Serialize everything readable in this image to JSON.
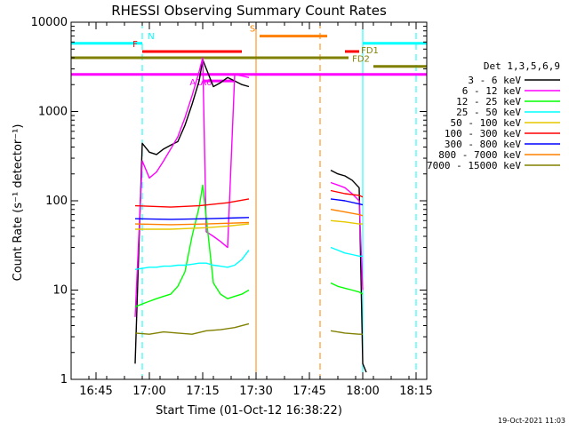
{
  "chart_data": {
    "type": "line",
    "title": "RHESSI Observing Summary Count Rates",
    "xlabel": "Start Time (01-Oct-12 16:38:22)",
    "ylabel": "Count Rate (s⁻¹ detector⁻¹)",
    "yscale": "log",
    "ylim": [
      1,
      10000
    ],
    "xlim": [
      "16:38",
      "18:18"
    ],
    "x_ticks": [
      "16:45",
      "17:00",
      "17:15",
      "17:30",
      "17:45",
      "18:00",
      "18:15"
    ],
    "y_ticks": [
      "1",
      "10",
      "100",
      "1000",
      "10000"
    ],
    "timestamp": "19-Oct-2021 11:03",
    "legend_title": "Det 1,3,5,6,9",
    "legend_position": "right",
    "series": [
      {
        "name": "3 - 6 keV",
        "color": "#000000",
        "segments": [
          {
            "x": [
              "16:56",
              "16:58",
              "17:00",
              "17:02",
              "17:04",
              "17:06",
              "17:08",
              "17:10",
              "17:12",
              "17:14",
              "17:15",
              "17:18",
              "17:20",
              "17:22",
              "17:24",
              "17:26",
              "17:28"
            ],
            "y": [
              1.5,
              440,
              350,
              330,
              380,
              420,
              460,
              700,
              1200,
              2200,
              3800,
              1900,
              2100,
              2400,
              2200,
              2000,
              1900
            ]
          },
          {
            "x": [
              "17:51",
              "17:53",
              "17:55",
              "17:57",
              "17:59",
              "18:00",
              "18:01"
            ],
            "y": [
              220,
              200,
              190,
              170,
              140,
              1.5,
              1.2
            ]
          }
        ]
      },
      {
        "name": "6 - 12 keV",
        "color": "#ff00ff",
        "segments": [
          {
            "x": [
              "16:56",
              "16:58",
              "17:00",
              "17:02",
              "17:04",
              "17:06",
              "17:08",
              "17:10",
              "17:12",
              "17:14",
              "17:15",
              "17:16",
              "17:18",
              "17:20",
              "17:22",
              "17:24",
              "17:26",
              "17:28"
            ],
            "y": [
              5,
              280,
              180,
              210,
              280,
              380,
              520,
              850,
              1500,
              2800,
              4000,
              45,
              40,
              35,
              30,
              2600,
              2500,
              2400
            ]
          },
          {
            "x": [
              "17:51",
              "17:53",
              "17:55",
              "17:57",
              "17:59",
              "18:00"
            ],
            "y": [
              160,
              150,
              140,
              120,
              100,
              10
            ]
          }
        ]
      },
      {
        "name": "12 - 25 keV",
        "color": "#00ff00",
        "segments": [
          {
            "x": [
              "16:56",
              "16:58",
              "17:00",
              "17:02",
              "17:04",
              "17:06",
              "17:08",
              "17:10",
              "17:12",
              "17:14",
              "17:15",
              "17:18",
              "17:20",
              "17:22",
              "17:24",
              "17:26",
              "17:28"
            ],
            "y": [
              6.5,
              7,
              7.5,
              8,
              8.5,
              9,
              11,
              16,
              40,
              85,
              150,
              12,
              9,
              8,
              8.5,
              9,
              10
            ]
          },
          {
            "x": [
              "17:51",
              "17:53",
              "17:55",
              "17:57",
              "17:59",
              "18:00"
            ],
            "y": [
              12,
              11,
              10.5,
              10,
              9.5,
              9
            ]
          }
        ]
      },
      {
        "name": "25 - 50 keV",
        "color": "#00ffff",
        "segments": [
          {
            "x": [
              "16:56",
              "16:58",
              "17:00",
              "17:02",
              "17:04",
              "17:06",
              "17:08",
              "17:10",
              "17:12",
              "17:14",
              "17:16",
              "17:18",
              "17:20",
              "17:22",
              "17:24",
              "17:26",
              "17:28"
            ],
            "y": [
              17,
              17.5,
              18,
              18,
              18.5,
              18.5,
              19,
              19,
              19.5,
              20,
              20,
              19,
              18.5,
              18,
              19,
              22,
              28
            ]
          },
          {
            "x": [
              "17:51",
              "17:53",
              "17:55",
              "17:57",
              "17:59",
              "18:00"
            ],
            "y": [
              30,
              28,
              26,
              25,
              24,
              24
            ]
          }
        ]
      },
      {
        "name": "50 - 100 keV",
        "color": "#e6c800",
        "segments": [
          {
            "x": [
              "16:56",
              "17:06",
              "17:16",
              "17:22",
              "17:28"
            ],
            "y": [
              48,
              48,
              50,
              52,
              55
            ]
          },
          {
            "x": [
              "17:51",
              "17:55",
              "17:59",
              "18:00"
            ],
            "y": [
              60,
              58,
              55,
              55
            ]
          }
        ]
      },
      {
        "name": "100 - 300 keV",
        "color": "#ff0000",
        "segments": [
          {
            "x": [
              "16:56",
              "17:06",
              "17:14",
              "17:22",
              "17:28"
            ],
            "y": [
              88,
              85,
              88,
              95,
              105
            ]
          },
          {
            "x": [
              "17:51",
              "17:55",
              "17:59",
              "18:00"
            ],
            "y": [
              130,
              120,
              115,
              110
            ]
          }
        ]
      },
      {
        "name": "300 - 800 keV",
        "color": "#0000ff",
        "segments": [
          {
            "x": [
              "16:56",
              "17:06",
              "17:16",
              "17:22",
              "17:28"
            ],
            "y": [
              63,
              62,
              63,
              64,
              65
            ]
          },
          {
            "x": [
              "17:51",
              "17:55",
              "17:59",
              "18:00"
            ],
            "y": [
              105,
              100,
              92,
              90
            ]
          }
        ]
      },
      {
        "name": "800 - 7000 keV",
        "color": "#ff8000",
        "segments": [
          {
            "x": [
              "16:56",
              "17:06",
              "17:16",
              "17:22",
              "17:28"
            ],
            "y": [
              55,
              54,
              55,
              56,
              57
            ]
          },
          {
            "x": [
              "17:51",
              "17:55",
              "17:59",
              "18:00"
            ],
            "y": [
              80,
              75,
              70,
              68
            ]
          }
        ]
      },
      {
        "name": "7000 - 15000 keV",
        "color": "#808000",
        "segments": [
          {
            "x": [
              "16:56",
              "17:00",
              "17:04",
              "17:08",
              "17:12",
              "17:16",
              "17:20",
              "17:24",
              "17:28"
            ],
            "y": [
              3.3,
              3.2,
              3.4,
              3.3,
              3.2,
              3.5,
              3.6,
              3.8,
              4.2
            ]
          },
          {
            "x": [
              "17:51",
              "17:55",
              "17:59",
              "18:00"
            ],
            "y": [
              3.5,
              3.3,
              3.2,
              3.2
            ]
          }
        ]
      }
    ],
    "attenuator_markers": [
      {
        "label": "A1",
        "x": "17:14",
        "color": "#ff00ff"
      },
      {
        "label": "A0",
        "x": "17:17",
        "color": "#ff00ff"
      }
    ],
    "status_bars": [
      {
        "label": "N",
        "color": "#00ffff",
        "y": 5800,
        "ranges": [
          [
            "16:38",
            "16:58"
          ],
          [
            "18:00",
            "18:18"
          ]
        ]
      },
      {
        "label": "F",
        "color": "#ff0000",
        "y": 4700,
        "ranges": [
          [
            "16:58",
            "17:26"
          ],
          [
            "17:55",
            "17:59"
          ]
        ]
      },
      {
        "label": "S",
        "color": "#ff8000",
        "y": 7000,
        "ranges": [
          [
            "17:31",
            "17:50"
          ]
        ]
      },
      {
        "label": "FD1",
        "color": "#808000",
        "y": 4000,
        "ranges": [
          [
            "16:38",
            "17:56"
          ]
        ]
      },
      {
        "label": "FD2",
        "color": "#808000",
        "y": 3200,
        "ranges": [
          [
            "18:03",
            "18:18"
          ]
        ]
      },
      {
        "label": "",
        "color": "#ff00ff",
        "y": 2600,
        "ranges": [
          [
            "16:38",
            "18:18"
          ]
        ]
      },
      {
        "label": "",
        "color": "#ff00ff",
        "y": 2200,
        "ranges": [
          [
            "17:15",
            "17:24"
          ]
        ]
      }
    ],
    "vertical_lines": [
      {
        "x": "16:38",
        "color": "#00ffff",
        "style": "solid"
      },
      {
        "x": "16:58",
        "color": "#00ffff",
        "style": "dashed"
      },
      {
        "x": "17:30",
        "color": "#ff8000",
        "style": "solid"
      },
      {
        "x": "17:48",
        "color": "#ff8000",
        "style": "dashed"
      },
      {
        "x": "18:00",
        "color": "#00ffff",
        "style": "solid"
      },
      {
        "x": "18:15",
        "color": "#00ffff",
        "style": "dashed"
      }
    ]
  }
}
